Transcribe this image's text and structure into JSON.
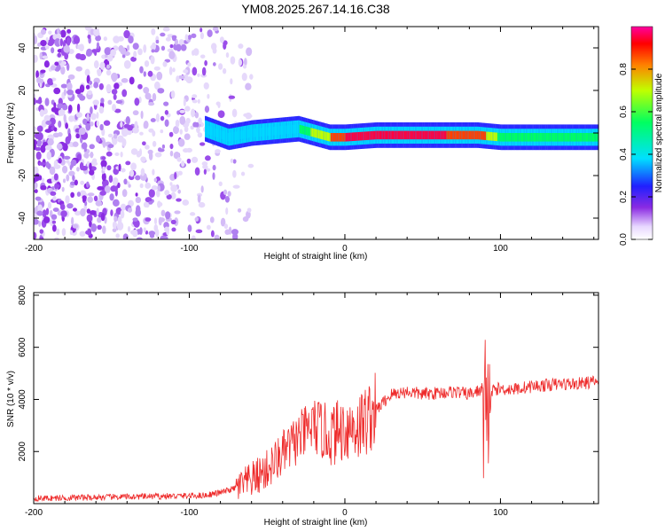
{
  "chart_data": [
    {
      "type": "heatmap",
      "title": "YM08.2025.267.14.16.C38",
      "xlabel": "Height of straight line (km)",
      "ylabel": "Frequency (Hz)",
      "xlim": [
        -200,
        163
      ],
      "ylim": [
        -50,
        50
      ],
      "x_ticks": [
        -200,
        -100,
        0,
        100
      ],
      "y_ticks": [
        -40,
        -20,
        0,
        20,
        40
      ],
      "colorbar": {
        "label": "Normalized spectral amplitude",
        "range": [
          0,
          1
        ],
        "ticks": [
          0.0,
          0.2,
          0.4,
          0.6,
          0.8
        ]
      },
      "ridge": {
        "description_points_x": [
          -90,
          -75,
          -60,
          -45,
          -30,
          -20,
          -10,
          0,
          20,
          50,
          80,
          85,
          100,
          130,
          163
        ],
        "freq_hz": [
          2,
          -2,
          0,
          1,
          2,
          0,
          -2,
          -2,
          -1,
          -1,
          -1,
          -1,
          -2,
          -2,
          -2
        ],
        "amplitude": [
          0.35,
          0.4,
          0.45,
          0.45,
          0.5,
          0.7,
          0.8,
          0.9,
          0.95,
          0.95,
          0.85,
          0.9,
          0.6,
          0.55,
          0.55
        ]
      }
    },
    {
      "type": "line",
      "title": "",
      "xlabel": "Height of straight line (km)",
      "ylabel": "SNR (10 * v/v)",
      "xlim": [
        -200,
        163
      ],
      "ylim": [
        0,
        8100
      ],
      "x_ticks": [
        -200,
        -100,
        0,
        100
      ],
      "y_ticks": [
        2000,
        4000,
        6000,
        8000
      ],
      "series": [
        {
          "color": "#ee2a2a",
          "x": [
            -200,
            -180,
            -160,
            -140,
            -120,
            -100,
            -90,
            -80,
            -70,
            -60,
            -50,
            -40,
            -30,
            -20,
            -10,
            0,
            10,
            20,
            25,
            30,
            40,
            50,
            60,
            70,
            80,
            85,
            88,
            90,
            92,
            95,
            100,
            110,
            120,
            130,
            140,
            150,
            163
          ],
          "y": [
            200,
            220,
            240,
            260,
            280,
            300,
            320,
            420,
            600,
            900,
            1300,
            1900,
            2500,
            3000,
            2600,
            2900,
            3000,
            3600,
            3900,
            4200,
            4300,
            4200,
            4250,
            4300,
            4200,
            4300,
            4400,
            4300,
            3000,
            4400,
            4400,
            4400,
            4500,
            4550,
            4600,
            4600,
            4700
          ]
        }
      ]
    }
  ],
  "colors": {
    "line": "#ee2a2a",
    "axis": "#000000",
    "scatter": "#8a2be2"
  }
}
